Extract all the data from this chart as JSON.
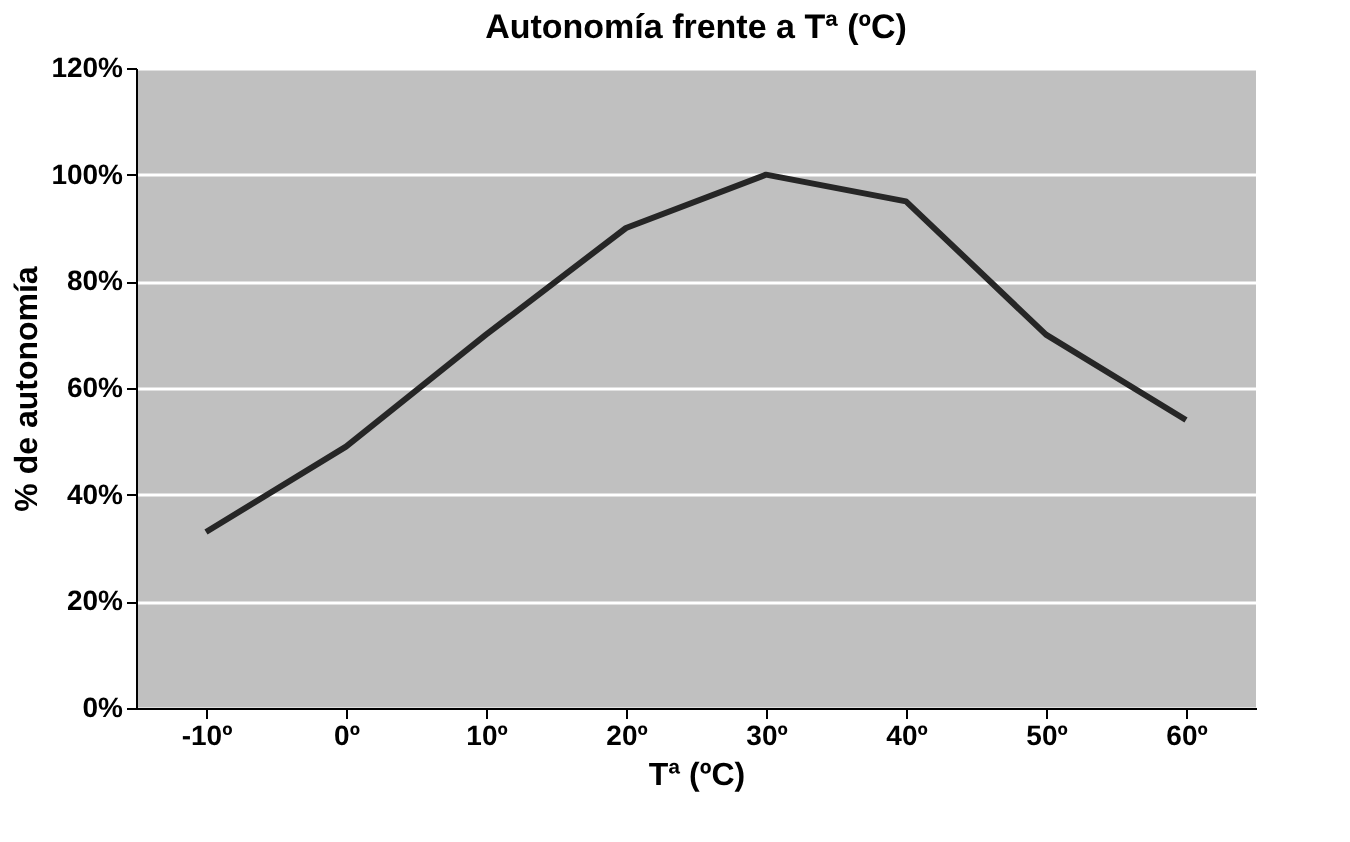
{
  "chart_data": {
    "type": "line",
    "title": "Autonomía frente a Tª (ºC)",
    "xlabel": "Tª (ºC)",
    "ylabel": "% de autonomía",
    "categories": [
      "-10º",
      "0º",
      "10º",
      "20º",
      "30º",
      "40º",
      "50º",
      "60º"
    ],
    "series": [
      {
        "color": "#262626",
        "values": [
          33,
          49,
          70,
          90,
          100,
          95,
          70,
          54
        ]
      }
    ],
    "ylim": [
      0,
      120
    ],
    "yticks": [
      {
        "value": 0,
        "label": "0%"
      },
      {
        "value": 20,
        "label": "20%"
      },
      {
        "value": 40,
        "label": "40%"
      },
      {
        "value": 60,
        "label": "60%"
      },
      {
        "value": 80,
        "label": "80%"
      },
      {
        "value": 100,
        "label": "100%"
      },
      {
        "value": 120,
        "label": "120%"
      }
    ],
    "grid": "y",
    "marker": "none",
    "line_style": "solid"
  }
}
